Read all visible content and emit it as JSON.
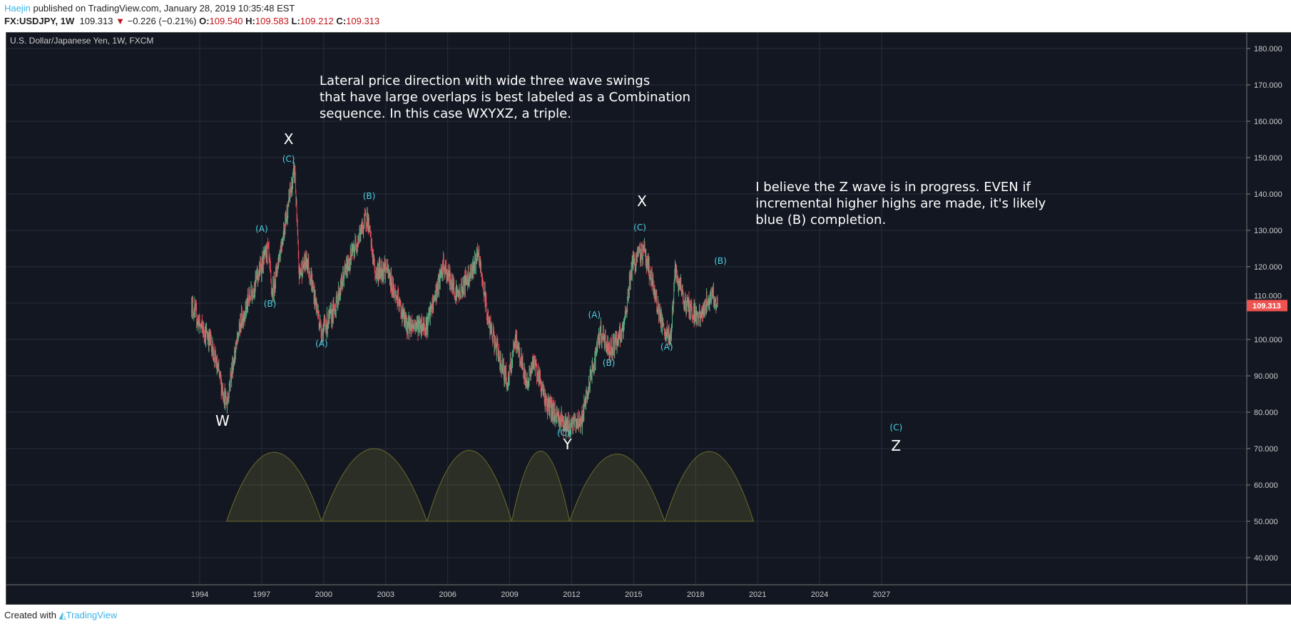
{
  "header": {
    "user": "Haejin",
    "published": " published on TradingView.com, January 28, 2019 10:35:48 EST",
    "symbol": "FX:USDJPY, 1W",
    "last": "109.313",
    "change": "−0.226 (−0.21%)",
    "o_label": "O:",
    "o": "109.540",
    "h_label": "H:",
    "h": "109.583",
    "l_label": "L:",
    "l": "109.212",
    "c_label": "C:",
    "c": "109.313"
  },
  "footer": {
    "created": "Created with",
    "brand": "TradingView"
  },
  "chart_data": {
    "type": "candlestick",
    "title": "U.S. Dollar/Japanese Yen, 1W, FXCM",
    "ylim": [
      33,
      185
    ],
    "xlim": [
      1986.9,
      2035
    ],
    "y_ticks": [
      "180.000",
      "170.000",
      "160.000",
      "150.000",
      "140.000",
      "130.000",
      "120.000",
      "110.000",
      "100.000",
      "90.000",
      "80.000",
      "70.000",
      "60.000",
      "50.000",
      "40.000"
    ],
    "y_tick_values": [
      180,
      170,
      160,
      150,
      140,
      130,
      120,
      110,
      100,
      90,
      80,
      70,
      60,
      50,
      40
    ],
    "x_ticks": [
      "1994",
      "1997",
      "2000",
      "2003",
      "2006",
      "2009",
      "2012",
      "2015",
      "2018",
      "2021",
      "2024",
      "2027"
    ],
    "last_price": "109.313",
    "price_path": [
      [
        1993.6,
        110
      ],
      [
        1994.0,
        104
      ],
      [
        1994.5,
        100
      ],
      [
        1995.3,
        82
      ],
      [
        1995.5,
        90
      ],
      [
        1996,
        105
      ],
      [
        1997.3,
        125
      ],
      [
        1997.5,
        112
      ],
      [
        1998.6,
        147
      ],
      [
        1998.8,
        118
      ],
      [
        1999.2,
        122
      ],
      [
        1999.9,
        102
      ],
      [
        2000.5,
        108
      ],
      [
        2001,
        118
      ],
      [
        2002.1,
        134
      ],
      [
        2002.5,
        118
      ],
      [
        2003,
        120
      ],
      [
        2004,
        104
      ],
      [
        2005,
        104
      ],
      [
        2005.8,
        120
      ],
      [
        2006.5,
        112
      ],
      [
        2007.5,
        123
      ],
      [
        2008,
        104
      ],
      [
        2008.9,
        88
      ],
      [
        2009.3,
        100
      ],
      [
        2009.8,
        88
      ],
      [
        2010.2,
        94
      ],
      [
        2010.8,
        82
      ],
      [
        2011.8,
        76
      ],
      [
        2012.5,
        78
      ],
      [
        2013.4,
        102
      ],
      [
        2013.8,
        97
      ],
      [
        2014.5,
        102
      ],
      [
        2014.9,
        120
      ],
      [
        2015.5,
        125
      ],
      [
        2016.5,
        101
      ],
      [
        2016.8,
        101
      ],
      [
        2017.0,
        118
      ],
      [
        2017.5,
        110
      ],
      [
        2018.2,
        106
      ],
      [
        2018.8,
        113
      ],
      [
        2019.07,
        109.3
      ]
    ],
    "cycles": [
      [
        1995.3,
        1999.9,
        69
      ],
      [
        1999.9,
        2005,
        70
      ],
      [
        2005,
        2009.1,
        69.5
      ],
      [
        2009.1,
        2011.9,
        69.3
      ],
      [
        2011.9,
        2016.5,
        68.5
      ],
      [
        2016.5,
        2020.8,
        69.2
      ]
    ],
    "cycle_base": 50,
    "wave_labels": [
      {
        "t": "X",
        "x": 1998.3,
        "y": 152.9,
        "big": true
      },
      {
        "t": "(C)",
        "x": 1998.3,
        "y": 148.8
      },
      {
        "t": "(A)",
        "x": 1997.0,
        "y": 129.6
      },
      {
        "t": "(B)",
        "x": 1997.4,
        "y": 109
      },
      {
        "t": "(A)",
        "x": 1999.9,
        "y": 98
      },
      {
        "t": "(B)",
        "x": 2002.2,
        "y": 138.6
      },
      {
        "t": "W",
        "x": 1995.1,
        "y": 75.5,
        "big": true
      },
      {
        "t": "(C)",
        "x": 2011.6,
        "y": 73.5
      },
      {
        "t": "Y",
        "x": 2011.8,
        "y": 69,
        "big": true
      },
      {
        "t": "(A)",
        "x": 2013.1,
        "y": 106
      },
      {
        "t": "(B)",
        "x": 2013.8,
        "y": 92.7
      },
      {
        "t": "X",
        "x": 2015.4,
        "y": 135.9,
        "big": true
      },
      {
        "t": "(C)",
        "x": 2015.3,
        "y": 130
      },
      {
        "t": "(A)",
        "x": 2016.6,
        "y": 97.2
      },
      {
        "t": "(B)",
        "x": 2019.2,
        "y": 120.8
      },
      {
        "t": "(C)",
        "x": 2027.7,
        "y": 75
      },
      {
        "t": "Z",
        "x": 2027.7,
        "y": 68.6,
        "big": true
      }
    ],
    "notes": [
      {
        "lines": [
          "Lateral price direction with wide three wave swings",
          "that have large overlaps is best labeled as a Combination",
          "sequence. In this case WXYXZ, a triple."
        ],
        "x": 1999.8,
        "y": 170
      },
      {
        "lines": [
          "I believe the Z wave is in progress. EVEN if",
          "incremental higher highs are made, it's likely",
          "blue (B) completion."
        ],
        "x": 2020.9,
        "y": 140.8
      }
    ]
  },
  "colors": {
    "bg": "#131722",
    "grid": "#2a2e39",
    "up": "#53b987",
    "down": "#eb4d5c",
    "label": "#4dd0e1",
    "cycle": "#6b6b2a"
  }
}
